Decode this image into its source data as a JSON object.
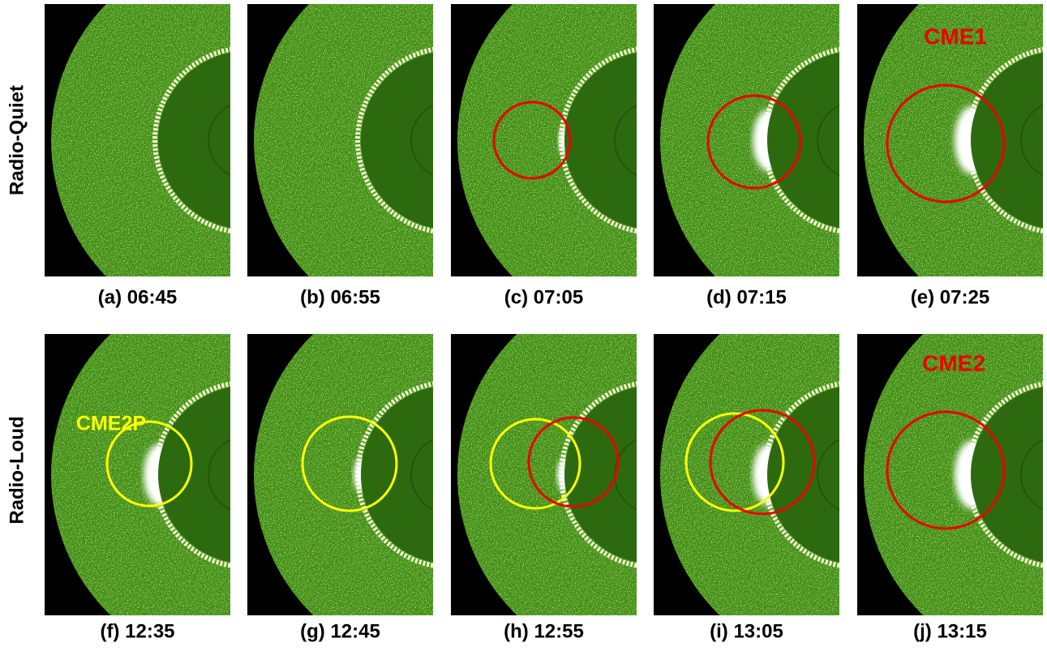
{
  "rows": [
    {
      "label": "Radio-Quiet",
      "panels": [
        {
          "caption": "(a) 06:45"
        },
        {
          "caption": "(b) 06:55"
        },
        {
          "caption": "(c) 07:05"
        },
        {
          "caption": "(d) 07:15"
        },
        {
          "caption": "(e) 07:25",
          "annotation": "CME1"
        }
      ]
    },
    {
      "label": "Radio-Loud",
      "panels": [
        {
          "caption": "(f) 12:35",
          "annotation": "CME2P"
        },
        {
          "caption": "(g) 12:45"
        },
        {
          "caption": "(h) 12:55"
        },
        {
          "caption": "(i) 13:05"
        },
        {
          "caption": "(j) 13:15",
          "annotation": "CME2"
        }
      ]
    }
  ]
}
